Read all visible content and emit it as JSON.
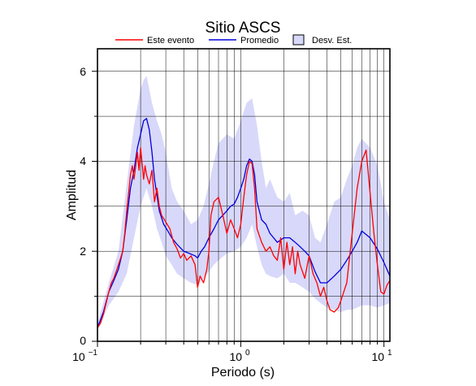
{
  "chart_data": {
    "type": "line",
    "title": "Sitio ASCS",
    "xlabel": "Periodo (s)",
    "ylabel": "Amplitud",
    "x_scale": "log",
    "xlim": [
      0.1,
      11
    ],
    "ylim": [
      0,
      6.5
    ],
    "grid": true,
    "legend_position": "top",
    "x_tick_labels": [
      {
        "value": 0.1,
        "base": "10",
        "exp": "−1"
      },
      {
        "value": 1,
        "base": "10",
        "exp": "0"
      },
      {
        "value": 10,
        "base": "10",
        "exp": "1"
      }
    ],
    "y_ticks": [
      0,
      2,
      4,
      6
    ],
    "y_tick_labels": [
      "0",
      "2",
      "4",
      "6"
    ],
    "legend": {
      "event": "Este evento",
      "mean": "Promedio",
      "std": "Desv. Est."
    },
    "colors": {
      "event": "#ff0000",
      "mean": "#0000dd",
      "std_fill": "#d8d8fa",
      "grid": "#000000"
    },
    "series": [
      {
        "key": "event",
        "x": [
          0.1,
          0.105,
          0.11,
          0.115,
          0.12,
          0.125,
          0.13,
          0.135,
          0.14,
          0.145,
          0.15,
          0.155,
          0.16,
          0.165,
          0.17,
          0.175,
          0.18,
          0.185,
          0.19,
          0.195,
          0.2,
          0.21,
          0.215,
          0.22,
          0.23,
          0.24,
          0.25,
          0.26,
          0.27,
          0.28,
          0.3,
          0.32,
          0.34,
          0.36,
          0.38,
          0.4,
          0.42,
          0.45,
          0.48,
          0.5,
          0.52,
          0.55,
          0.58,
          0.6,
          0.62,
          0.65,
          0.7,
          0.75,
          0.8,
          0.85,
          0.9,
          0.95,
          1.0,
          1.05,
          1.1,
          1.15,
          1.2,
          1.25,
          1.3,
          1.4,
          1.5,
          1.6,
          1.7,
          1.8,
          1.9,
          2.0,
          2.1,
          2.2,
          2.3,
          2.4,
          2.5,
          2.6,
          2.8,
          3.0,
          3.2,
          3.4,
          3.6,
          3.8,
          4.0,
          4.2,
          4.5,
          4.8,
          5.0,
          5.5,
          6.0,
          6.5,
          7.0,
          7.5,
          8.0,
          8.5,
          9.0,
          9.5,
          10.0,
          10.5,
          11.0
        ],
        "y": [
          0.3,
          0.4,
          0.6,
          0.85,
          1.1,
          1.3,
          1.4,
          1.55,
          1.7,
          1.85,
          2.0,
          2.4,
          2.9,
          3.3,
          3.7,
          3.9,
          3.6,
          3.9,
          4.2,
          3.8,
          4.3,
          3.6,
          3.9,
          3.7,
          3.5,
          3.8,
          3.1,
          3.4,
          3.0,
          2.8,
          2.65,
          2.5,
          2.2,
          2.05,
          1.85,
          1.95,
          1.8,
          1.9,
          1.7,
          1.2,
          1.45,
          1.3,
          1.6,
          2.0,
          2.8,
          3.1,
          3.2,
          2.8,
          2.4,
          2.7,
          2.5,
          2.3,
          2.6,
          3.2,
          3.7,
          4.0,
          3.95,
          3.4,
          2.5,
          2.2,
          2.0,
          2.1,
          1.9,
          1.8,
          2.3,
          1.6,
          2.2,
          1.7,
          2.1,
          1.5,
          2.0,
          1.7,
          1.4,
          1.9,
          1.5,
          1.3,
          1.0,
          1.2,
          0.9,
          0.7,
          0.65,
          0.75,
          0.9,
          1.3,
          2.4,
          3.4,
          4.0,
          4.25,
          3.3,
          2.4,
          1.7,
          1.1,
          1.05,
          1.25,
          1.35
        ]
      },
      {
        "key": "mean",
        "x": [
          0.1,
          0.11,
          0.12,
          0.13,
          0.14,
          0.15,
          0.16,
          0.17,
          0.18,
          0.19,
          0.2,
          0.21,
          0.22,
          0.23,
          0.24,
          0.25,
          0.27,
          0.29,
          0.31,
          0.33,
          0.36,
          0.4,
          0.44,
          0.48,
          0.5,
          0.53,
          0.56,
          0.6,
          0.65,
          0.7,
          0.75,
          0.8,
          0.85,
          0.9,
          0.95,
          1.0,
          1.05,
          1.1,
          1.15,
          1.2,
          1.25,
          1.3,
          1.4,
          1.5,
          1.6,
          1.8,
          2.0,
          2.2,
          2.4,
          2.6,
          2.8,
          3.0,
          3.3,
          3.6,
          4.0,
          4.5,
          5.0,
          5.5,
          6.0,
          6.5,
          7.0,
          8.0,
          9.0,
          10.0,
          11.0
        ],
        "y": [
          0.3,
          0.65,
          1.1,
          1.35,
          1.6,
          2.0,
          2.7,
          3.4,
          3.8,
          4.3,
          4.6,
          4.9,
          4.95,
          4.7,
          4.2,
          3.6,
          2.9,
          2.6,
          2.45,
          2.3,
          2.15,
          2.0,
          1.95,
          1.9,
          1.85,
          2.0,
          2.1,
          2.3,
          2.5,
          2.7,
          2.8,
          2.9,
          3.0,
          3.05,
          3.2,
          3.4,
          3.6,
          3.9,
          4.05,
          4.0,
          3.7,
          3.1,
          2.7,
          2.6,
          2.4,
          2.2,
          2.3,
          2.3,
          2.2,
          2.1,
          2.0,
          1.9,
          1.55,
          1.3,
          1.3,
          1.45,
          1.6,
          1.8,
          2.0,
          2.2,
          2.45,
          2.3,
          2.05,
          1.75,
          1.45
        ]
      },
      {
        "key": "std_upper",
        "x": [
          0.1,
          0.12,
          0.14,
          0.16,
          0.18,
          0.2,
          0.21,
          0.22,
          0.23,
          0.24,
          0.26,
          0.28,
          0.3,
          0.33,
          0.36,
          0.4,
          0.45,
          0.5,
          0.55,
          0.6,
          0.65,
          0.7,
          0.8,
          0.9,
          1.0,
          1.1,
          1.2,
          1.3,
          1.4,
          1.5,
          1.6,
          1.8,
          2.0,
          2.2,
          2.4,
          2.7,
          3.0,
          3.3,
          3.6,
          4.0,
          4.5,
          5.0,
          5.5,
          6.0,
          6.5,
          7.0,
          8.0,
          9.0,
          10.0,
          11.0
        ],
        "y": [
          0.4,
          1.3,
          2.0,
          3.5,
          4.8,
          5.6,
          5.8,
          5.9,
          5.6,
          5.3,
          4.9,
          4.6,
          4.2,
          3.4,
          3.1,
          2.9,
          2.6,
          2.7,
          3.0,
          3.5,
          4.0,
          4.4,
          4.6,
          4.5,
          4.9,
          5.3,
          5.4,
          4.8,
          4.0,
          3.4,
          3.6,
          3.2,
          3.1,
          3.3,
          2.8,
          2.9,
          2.8,
          2.3,
          2.2,
          2.6,
          3.1,
          3.2,
          3.6,
          3.9,
          4.3,
          4.5,
          4.3,
          3.9,
          3.1,
          2.7
        ]
      },
      {
        "key": "std_lower",
        "x": [
          0.1,
          0.12,
          0.14,
          0.16,
          0.18,
          0.2,
          0.22,
          0.24,
          0.26,
          0.28,
          0.3,
          0.33,
          0.36,
          0.4,
          0.45,
          0.5,
          0.55,
          0.6,
          0.65,
          0.7,
          0.8,
          0.9,
          1.0,
          1.1,
          1.2,
          1.3,
          1.4,
          1.5,
          1.6,
          1.8,
          2.0,
          2.2,
          2.4,
          2.7,
          3.0,
          3.3,
          3.6,
          4.0,
          4.5,
          5.0,
          5.5,
          6.0,
          6.5,
          7.0,
          8.0,
          9.0,
          10.0,
          11.0
        ],
        "y": [
          0.25,
          0.8,
          1.1,
          1.5,
          2.3,
          3.0,
          3.4,
          3.0,
          2.5,
          2.2,
          1.9,
          1.7,
          1.5,
          1.4,
          1.3,
          1.25,
          1.4,
          1.55,
          1.7,
          1.8,
          1.95,
          2.0,
          2.1,
          2.3,
          2.6,
          2.1,
          1.7,
          1.5,
          1.45,
          1.4,
          1.5,
          1.3,
          1.3,
          1.2,
          1.1,
          0.95,
          0.85,
          0.75,
          0.7,
          0.65,
          0.7,
          0.7,
          0.75,
          0.8,
          0.8,
          0.75,
          0.8,
          0.85
        ]
      }
    ]
  }
}
